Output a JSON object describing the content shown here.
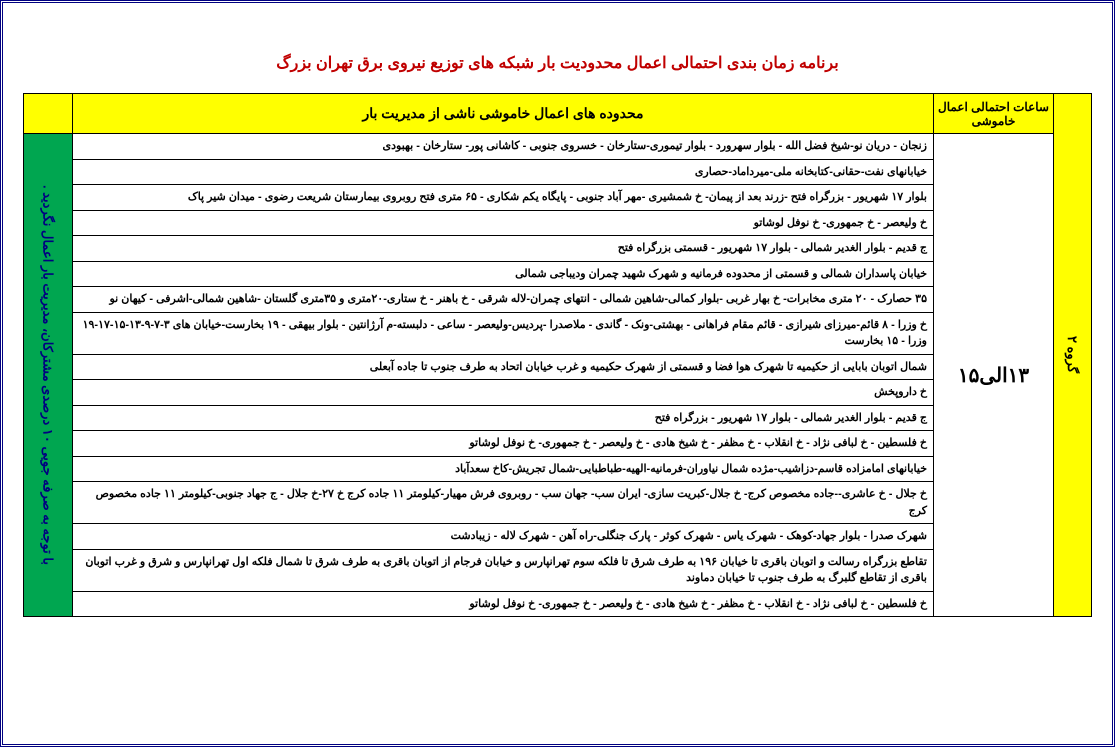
{
  "title": "برنامه زمان بندی احتمالی اعمال محدودیت بار شبکه های توزیع نیروی برق تهران بزرگ",
  "colors": {
    "title": "#c00000",
    "header_bg": "#ffff00",
    "note_bg": "#00a650",
    "note_text": "#000080",
    "border": "#000000",
    "frame": "#000080"
  },
  "group_label": "گروه ۲",
  "time_header": "ساعات احتمالی اعمال خاموشی",
  "time_value": "۱۳الی۱۵",
  "rows_header": "محدوده های اعمال خاموشی ناشی از مدیریت بار",
  "side_note": "با توجه به صرفه جویی ۱۰ درصدی مشترکان، مدیریت بار اعمال نگردید .",
  "rows": [
    "زنجان - دریان نو-شیخ فضل الله - بلوار سهرورد - بلوار تیموری-ستارخان - خسروی جنوبی - کاشانی پور- ستارخان - بهبودی",
    "خیابانهای نفت-حقانی-کتابخانه ملی-میرداماد-حصاری",
    "بلوار ۱۷ شهریور - بزرگراه فتح -زرند بعد از پیمان- خ شمشیری -مهر آباد جنوبی - پایگاه یکم شکاری - ۶۵ متری فتح روبروی بیمارستان شریعت رضوی - میدان شیر پاک",
    "خ ولیعصر - خ جمهوری- خ نوفل لوشاتو",
    "ج قدیم - بلوار الغدیر شمالی - بلوار ۱۷ شهریور - قسمتی بزرگراه فتح",
    "خیابان پاسداران شمالی و قسمتی از محدوده فرمانیه و شهرک شهید چمران ودیباجی شمالی",
    "۳۵ حصارک - ۲۰ متری مخابرات- خ بهار غربی -بلوار کمالی-شاهین شمالی - انتهای چمران-لاله شرقی - خ باهنر - خ ستاری-۲۰متری و ۳۵متری گلستان -شاهین شمالی-اشرفی - کیهان نو",
    "خ وزرا - ۸ قائم-میرزای شیرازی - قائم مقام فراهانی - بهشتی-ونک - گاندی - ملاصدرا -پردیس-ولیعصر - ساعی - دلبسته-م آرژانتین - بلوار بیهقی - ۱۹ بخارست-خیابان های ۳-۷-۹-۱۳-۱۵-۱۷-۱۹ وزرا - ۱۵ بخارست",
    "شمال اتوبان بابایی از حکیمیه تا شهرک هوا فضا و قسمتی از شهرک حکیمیه و غرب خیابان اتحاد به طرف جنوب تا جاده آبعلی",
    "خ داروپخش",
    "ج قدیم - بلوار الغدیر شمالی - بلوار ۱۷ شهریور - بزرگراه فتح",
    "خ فلسطین - خ لبافی نژاد - خ انقلاب - خ مظفر - خ شیخ هادی - خ ولیعصر - خ جمهوری- خ نوفل لوشاتو",
    "خیابانهای امامزاده قاسم-دزاشیب-مژده شمال نیاوران-فرمانیه-الهیه-طباطبایی-شمال تجریش-کاخ سعدآباد",
    "خ جلال - خ عاشری--جاده مخصوص کرج- خ جلال-کبریت سازی- ایران سب- جهان سب - روبروی فرش مهیار-کیلومتر ۱۱ جاده کرج خ ۲۷-خ جلال - ج جهاد جنوبی-کیلومتر ۱۱ جاده مخصوص کرج",
    "شهرک صدرا - بلوار جهاد-کوهک - شهرک یاس - شهرک کوثر - پارک جنگلی-راه آهن - شهرک لاله - زیبادشت",
    "تقاطع بزرگراه رسالت و اتوبان باقری تا خیابان ۱۹۶ به طرف شرق تا فلکه سوم تهرانپارس و خیابان فرجام از اتوبان باقری به طرف شرق تا شمال فلکه اول تهرانپارس و شرق و غرب اتوبان باقری از تقاطع گلبرگ به طرف جنوب تا خیابان دماوند",
    "خ فلسطین - خ لبافی نژاد - خ انقلاب - خ مظفر - خ شیخ هادی - خ ولیعصر - خ جمهوری- خ نوفل لوشاتو"
  ]
}
